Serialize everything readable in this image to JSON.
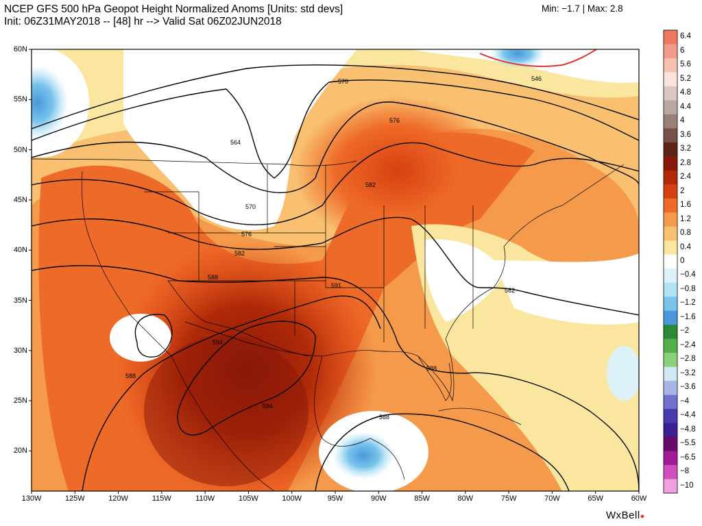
{
  "header": {
    "title": "NCEP GFS 500 hPa Geopot Height Normalized Anoms [Units: std devs]",
    "subtitle": "Init: 06Z31MAY2018 -- [48] hr --> Valid Sat 06Z02JUN2018",
    "minmax": "Min: −1.7 | Max: 2.8"
  },
  "axes": {
    "lat_labels": [
      "60N",
      "55N",
      "50N",
      "45N",
      "40N",
      "35N",
      "30N",
      "25N",
      "20N"
    ],
    "lon_labels": [
      "130W",
      "125W",
      "120W",
      "115W",
      "110W",
      "105W",
      "100W",
      "95W",
      "90W",
      "85W",
      "80W",
      "75W",
      "70W",
      "65W",
      "60W"
    ]
  },
  "colorbar": {
    "labels": [
      "6.4",
      "6",
      "5.6",
      "5.2",
      "4.8",
      "4.4",
      "4",
      "3.6",
      "3.2",
      "2.8",
      "2.4",
      "2",
      "1.6",
      "1.2",
      "0.8",
      "0.4",
      "0",
      "−0.4",
      "−0.8",
      "−1.2",
      "−1.6",
      "−2",
      "−2.4",
      "−2.8",
      "−3.2",
      "−3.6",
      "−4",
      "−4.4",
      "−4.8",
      "−5.5",
      "−6.5",
      "−8",
      "−10"
    ],
    "colors": [
      "#f07860",
      "#f49a88",
      "#f8c0b0",
      "#fbe4dc",
      "#d8c8c0",
      "#b8a8a0",
      "#988078",
      "#785048",
      "#5a2418",
      "#8a1808",
      "#b02a08",
      "#d84010",
      "#ee6a28",
      "#f59a4a",
      "#f8c070",
      "#fbe6a0",
      "#ffffff",
      "#dcf2f8",
      "#b0e2f4",
      "#78c4ec",
      "#4a98dc",
      "#2a8a3a",
      "#52b04a",
      "#88d07a",
      "#d0e8f4",
      "#a8b4e4",
      "#7070d0",
      "#4a3ab0",
      "#3a2090",
      "#6a0a6a",
      "#a01a9a",
      "#d050c0",
      "#f0a0e0"
    ]
  },
  "contours": {
    "labels": [
      "546",
      "564",
      "570",
      "570",
      "576",
      "576",
      "582",
      "582",
      "582",
      "588",
      "588",
      "588",
      "588",
      "591",
      "594",
      "594"
    ]
  },
  "brand": "WxBell"
}
